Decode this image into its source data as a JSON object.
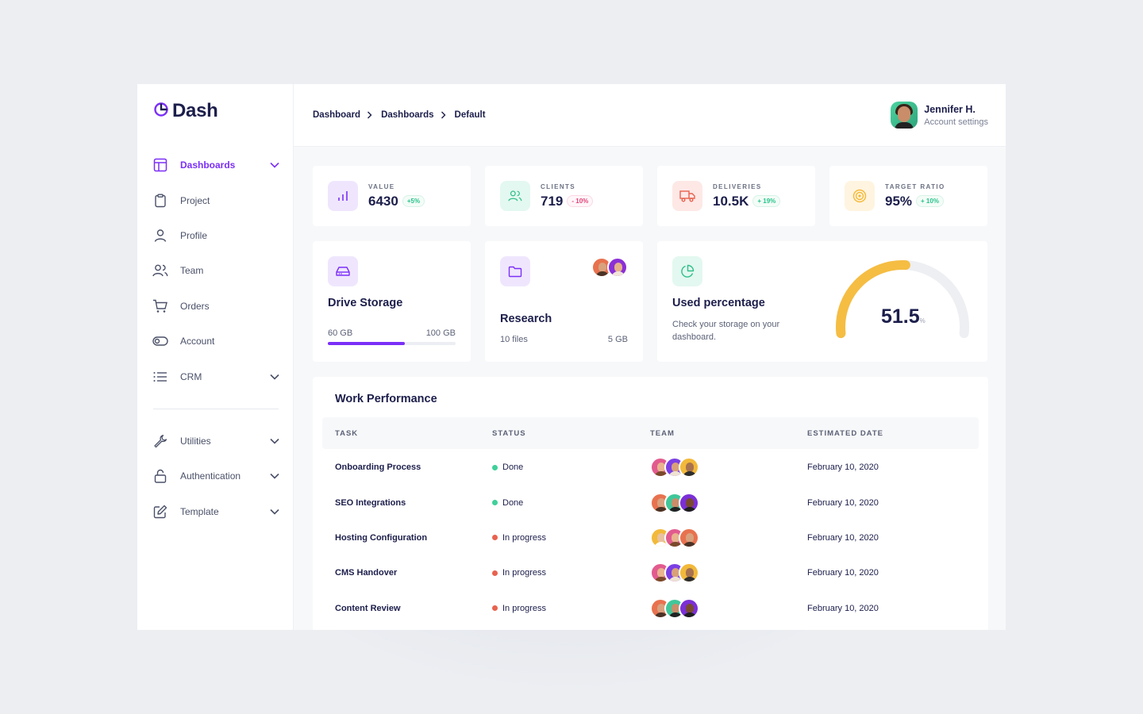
{
  "app": {
    "name": "Dash"
  },
  "sidebar": {
    "items": [
      {
        "label": "Dashboards",
        "icon": "layout-icon",
        "active": true,
        "chevron": true
      },
      {
        "label": "Project",
        "icon": "clipboard-icon",
        "active": false,
        "chevron": false
      },
      {
        "label": "Profile",
        "icon": "user-icon",
        "active": false,
        "chevron": false
      },
      {
        "label": "Team",
        "icon": "users-icon",
        "active": false,
        "chevron": false
      },
      {
        "label": "Orders",
        "icon": "cart-icon",
        "active": false,
        "chevron": false
      },
      {
        "label": "Account",
        "icon": "toggle-icon",
        "active": false,
        "chevron": false
      },
      {
        "label": "CRM",
        "icon": "list-icon",
        "active": false,
        "chevron": true
      }
    ],
    "secondary": [
      {
        "label": "Utilities",
        "icon": "wrench-icon"
      },
      {
        "label": "Authentication",
        "icon": "lock-icon"
      },
      {
        "label": "Template",
        "icon": "edit-icon"
      }
    ]
  },
  "header": {
    "breadcrumb": [
      "Dashboard",
      "Dashboards",
      "Default"
    ],
    "user": {
      "name": "Jennifer H.",
      "subtitle": "Account settings"
    }
  },
  "stats": [
    {
      "label": "VALUE",
      "value": "6430",
      "delta": "+5%",
      "trend": "up",
      "icon": "bar-chart-icon",
      "icon_bg": "#efe6fe",
      "icon_color": "#7b2ff7"
    },
    {
      "label": "CLIENTS",
      "value": "719",
      "delta": "- 10%",
      "trend": "down",
      "icon": "users-icon",
      "icon_bg": "#e3f8f0",
      "icon_color": "#2fbf8a"
    },
    {
      "label": "DELIVERIES",
      "value": "10.5K",
      "delta": "+ 19%",
      "trend": "up",
      "icon": "truck-icon",
      "icon_bg": "#fde8e6",
      "icon_color": "#e8624f"
    },
    {
      "label": "TARGET RATIO",
      "value": "95%",
      "delta": "+ 10%",
      "trend": "up",
      "icon": "target-icon",
      "icon_bg": "#fff4e0",
      "icon_color": "#f5b935"
    }
  ],
  "drive": {
    "title": "Drive Storage",
    "used": "60 GB",
    "total": "100 GB",
    "fraction": 0.6
  },
  "research": {
    "title": "Research",
    "files": "10 files",
    "size": "5 GB"
  },
  "usage": {
    "title": "Used percentage",
    "description": "Check your storage on your dashboard.",
    "value": "51.5",
    "unit": "%",
    "percent": 51.5
  },
  "performance": {
    "title": "Work Performance",
    "columns": [
      "TASK",
      "STATUS",
      "TEAM",
      "ESTIMATED DATE"
    ],
    "rows": [
      {
        "task": "Onboarding Process",
        "status": "Done",
        "status_color": "#3fd09a",
        "date": "February 10, 2020"
      },
      {
        "task": "SEO Integrations",
        "status": "Done",
        "status_color": "#3fd09a",
        "date": "February 10, 2020"
      },
      {
        "task": "Hosting Configuration",
        "status": "In progress",
        "status_color": "#e8624f",
        "date": "February 10, 2020"
      },
      {
        "task": "CMS Handover",
        "status": "In progress",
        "status_color": "#e8624f",
        "date": "February 10, 2020"
      },
      {
        "task": "Content Review",
        "status": "In progress",
        "status_color": "#e8624f",
        "date": "February 10, 2020"
      }
    ]
  },
  "colors": {
    "accent": "#7b2ff7",
    "gauge": "#f5bd42",
    "gauge_track": "#eeeff2"
  }
}
